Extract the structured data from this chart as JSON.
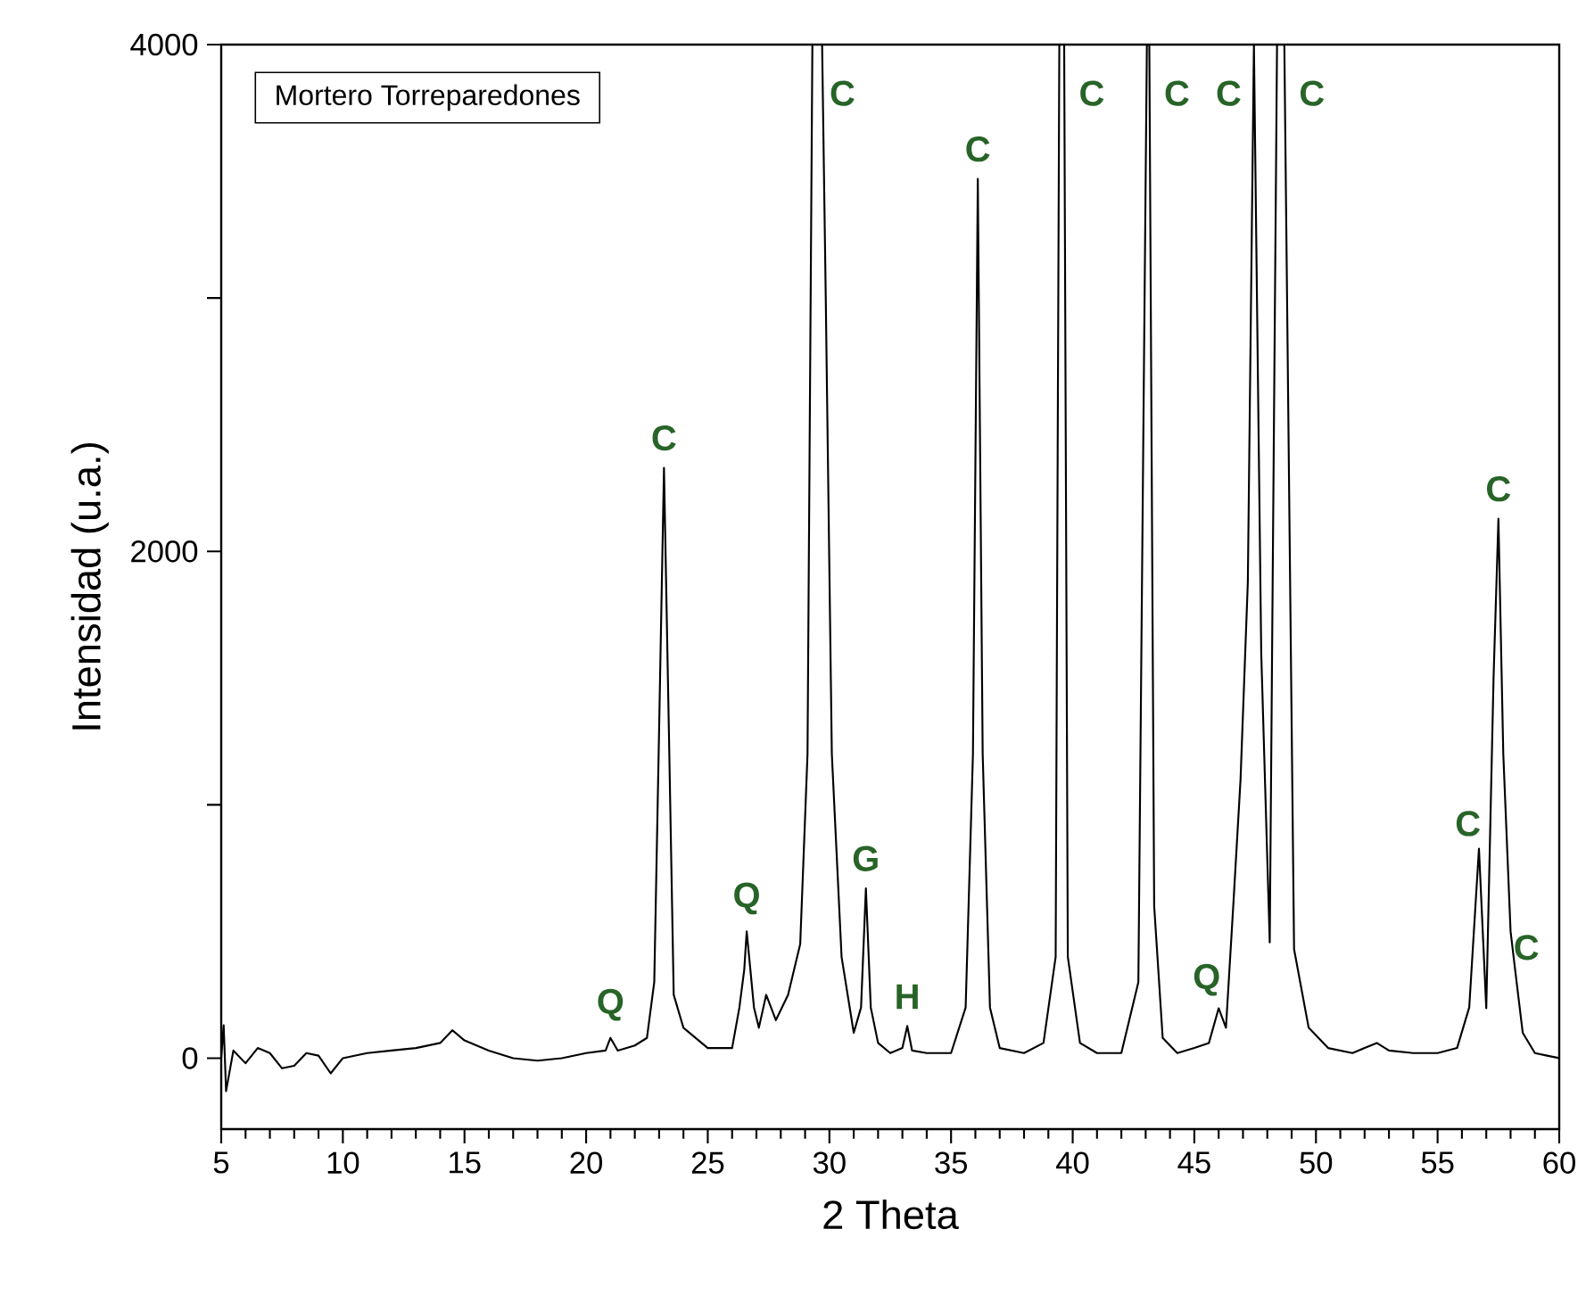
{
  "chart_data": {
    "type": "line",
    "xlabel": "2 Theta",
    "ylabel": "Intensidad (u.a.)",
    "xlim": [
      5,
      60
    ],
    "ylim": [
      -280,
      4000
    ],
    "xticks": [
      5,
      10,
      15,
      20,
      25,
      30,
      35,
      40,
      45,
      50,
      55,
      60
    ],
    "yticks": [
      0,
      {
        "value": 1000,
        "label": null
      },
      2000,
      {
        "value": 3000,
        "label": null
      },
      4000
    ],
    "grid": false,
    "marker": "none",
    "line_style": "solid",
    "color": "#000000",
    "x": [
      5.0,
      5.1,
      5.2,
      5.5,
      6.0,
      6.5,
      7.0,
      7.5,
      8.0,
      8.5,
      9.0,
      9.5,
      10.0,
      11.0,
      12.0,
      13.0,
      14.0,
      14.5,
      15.0,
      16.0,
      17.0,
      18.0,
      19.0,
      20.0,
      20.8,
      21.0,
      21.3,
      22.0,
      22.5,
      22.8,
      23.0,
      23.2,
      23.4,
      23.6,
      24.0,
      25.0,
      26.0,
      26.3,
      26.5,
      26.6,
      26.9,
      27.1,
      27.4,
      27.8,
      28.3,
      28.8,
      29.1,
      29.3,
      29.4,
      29.7,
      29.85,
      30.1,
      30.5,
      31.0,
      31.3,
      31.5,
      31.7,
      32.0,
      32.5,
      33.0,
      33.2,
      33.4,
      34.0,
      35.0,
      35.6,
      35.9,
      36.1,
      36.3,
      36.6,
      37.0,
      38.0,
      38.8,
      39.3,
      39.45,
      39.65,
      39.8,
      40.3,
      41.0,
      42.0,
      42.7,
      43.05,
      43.15,
      43.35,
      43.7,
      44.3,
      45.0,
      45.6,
      46.0,
      46.3,
      46.6,
      46.9,
      47.2,
      47.45,
      47.75,
      48.1,
      48.4,
      48.7,
      49.1,
      49.7,
      50.5,
      51.5,
      52.0,
      52.5,
      53.0,
      54.0,
      55.0,
      55.8,
      56.3,
      56.7,
      57.0,
      57.3,
      57.5,
      57.7,
      58.0,
      58.2,
      58.5,
      59.0,
      59.5,
      60.0
    ],
    "values": [
      0,
      130,
      -130,
      30,
      -20,
      40,
      20,
      -40,
      -30,
      20,
      10,
      -60,
      0,
      20,
      30,
      40,
      60,
      110,
      70,
      30,
      0,
      -10,
      0,
      20,
      30,
      80,
      30,
      50,
      80,
      300,
      1300,
      2330,
      1300,
      250,
      120,
      40,
      40,
      200,
      350,
      500,
      200,
      120,
      250,
      150,
      250,
      450,
      1200,
      4000,
      4000,
      4000,
      3000,
      1200,
      400,
      100,
      200,
      670,
      200,
      60,
      20,
      40,
      127,
      30,
      20,
      20,
      200,
      1200,
      3470,
      1200,
      200,
      40,
      20,
      60,
      400,
      4000,
      4000,
      400,
      60,
      20,
      20,
      300,
      4000,
      4000,
      600,
      80,
      20,
      40,
      60,
      197,
      120,
      600,
      1100,
      1880,
      4000,
      1600,
      457,
      4000,
      4000,
      430,
      120,
      40,
      20,
      40,
      60,
      30,
      20,
      20,
      40,
      200,
      827,
      197,
      1500,
      2129,
      1200,
      500,
      338,
      100,
      20,
      10,
      0
    ],
    "annotations": [
      "Mortero Torreparedones",
      {
        "text": "Q",
        "x": 21.0,
        "y": 80
      },
      {
        "text": "C",
        "x": 23.2,
        "y": 2330
      },
      {
        "text": "Q",
        "x": 26.6,
        "y": 500
      },
      {
        "text": "C",
        "x": 29.4,
        "y": 4000
      },
      {
        "text": "G",
        "x": 31.5,
        "y": 670
      },
      {
        "text": "H",
        "x": 33.2,
        "y": 127
      },
      {
        "text": "C",
        "x": 36.1,
        "y": 3470
      },
      {
        "text": "C",
        "x": 39.65,
        "y": 4000
      },
      {
        "text": "C",
        "x": 43.15,
        "y": 4000
      },
      {
        "text": "Q",
        "x": 46.0,
        "y": 197
      },
      {
        "text": "C",
        "x": 47.45,
        "y": 4000
      },
      {
        "text": "C",
        "x": 48.7,
        "y": 4000
      },
      {
        "text": "C",
        "x": 56.7,
        "y": 827
      },
      {
        "text": "C",
        "x": 57.5,
        "y": 2129
      },
      {
        "text": "C",
        "x": 58.2,
        "y": 338
      }
    ]
  }
}
